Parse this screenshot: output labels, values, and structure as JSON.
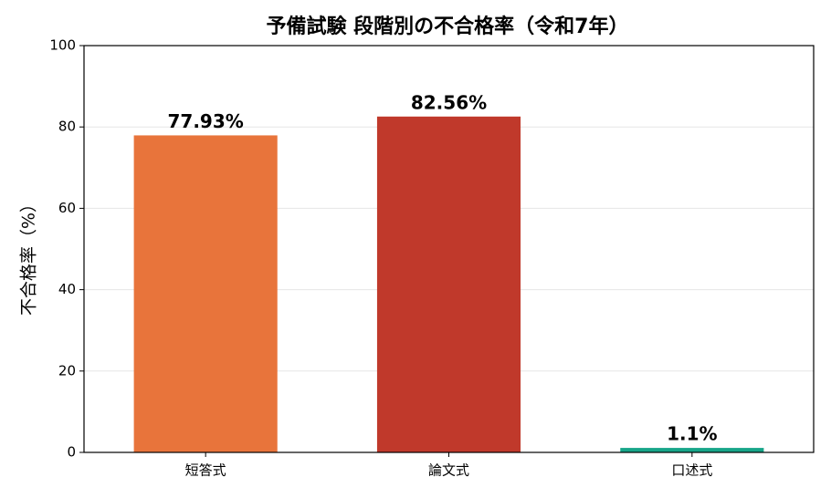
{
  "chart_data": {
    "type": "bar",
    "title": "予備試験 段階別の不合格率（令和7年）",
    "y_label": "不合格率（%）",
    "categories": [
      "短答式",
      "論文式",
      "口述式"
    ],
    "values": [
      77.93,
      82.56,
      1.1
    ],
    "value_labels": [
      "77.93%",
      "82.56%",
      "1.1%"
    ],
    "colors": [
      "#e8743b",
      "#c0392b",
      "#17a589"
    ],
    "ylim": [
      0,
      100
    ],
    "yticks": [
      0,
      20,
      40,
      60,
      80,
      100
    ],
    "grid": true
  }
}
